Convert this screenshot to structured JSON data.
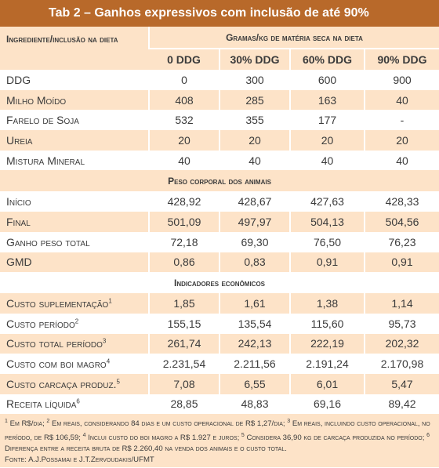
{
  "title": "Tab 2 – Ganhos expressivos com inclusão de até 90%",
  "table": {
    "header": {
      "row_label": "Ingrediente/inclusão na dieta",
      "group": "Gramas/kg de matéria seca na dieta",
      "columns": [
        "0 DDG",
        "30% DDG",
        "60% DDG",
        "90% DDG"
      ]
    },
    "ingredients": {
      "rows": [
        {
          "label": "DDG",
          "values": [
            "0",
            "300",
            "600",
            "900"
          ]
        },
        {
          "label": "Milho Moído",
          "values": [
            "408",
            "285",
            "163",
            "40"
          ]
        },
        {
          "label": "Farelo de Soja",
          "values": [
            "532",
            "355",
            "177",
            "-"
          ]
        },
        {
          "label": "Ureia",
          "values": [
            "20",
            "20",
            "20",
            "20"
          ]
        },
        {
          "label": "Mistura Mineral",
          "values": [
            "40",
            "40",
            "40",
            "40"
          ]
        }
      ]
    },
    "body_weight": {
      "title": "Peso corporal dos animais",
      "rows": [
        {
          "label": "Início",
          "values": [
            "428,92",
            "428,67",
            "427,63",
            "428,33"
          ]
        },
        {
          "label": "Final",
          "values": [
            "501,09",
            "497,97",
            "504,13",
            "504,56"
          ]
        },
        {
          "label": "Ganho peso total",
          "values": [
            "72,18",
            "69,30",
            "76,50",
            "76,23"
          ]
        },
        {
          "label": "GMD",
          "values": [
            "0,86",
            "0,83",
            "0,91",
            "0,91"
          ]
        }
      ]
    },
    "economics": {
      "title": "Indicadores econômicos",
      "rows": [
        {
          "label": "Custo suplementação",
          "note": "1",
          "values": [
            "1,85",
            "1,61",
            "1,38",
            "1,14"
          ]
        },
        {
          "label": "Custo período",
          "note": "2",
          "values": [
            "155,15",
            "135,54",
            "115,60",
            "95,73"
          ]
        },
        {
          "label": "Custo total período",
          "note": "3",
          "values": [
            "261,74",
            "242,13",
            "222,19",
            "202,32"
          ]
        },
        {
          "label": "Custo com boi magro",
          "note": "4",
          "values": [
            "2.231,54",
            "2.211,56",
            "2.191,24",
            "2.170,98"
          ]
        },
        {
          "label": "Custo carcaça produz.",
          "note": "5",
          "values": [
            "7,08",
            "6,55",
            "6,01",
            "5,47"
          ]
        },
        {
          "label": "Receita líquida",
          "note": "6",
          "values": [
            "28,85",
            "48,83",
            "69,16",
            "89,42"
          ]
        }
      ]
    }
  },
  "footnotes": [
    {
      "mark": "1",
      "text": "Em R$/dia;"
    },
    {
      "mark": "2",
      "text": "Em reais, considerando 84 dias e um custo operacional de R$ 1,27/dia;"
    },
    {
      "mark": "3",
      "text": "Em reais, incluindo custo operacional, no período, de R$ 106,59;"
    },
    {
      "mark": "4",
      "text": "Inclui custo do boi magro a R$ 1.927 e juros;"
    },
    {
      "mark": "5",
      "text": "Considera 36,90 kg de carcaça produzida no período;"
    },
    {
      "mark": "6",
      "text": "Diferença entre a receita bruta de R$ 2.260,40 na venda dos animais e o custo total."
    }
  ],
  "source": "Fonte: A.J.Possamai e J.T.Zervoudakis/UFMT"
}
